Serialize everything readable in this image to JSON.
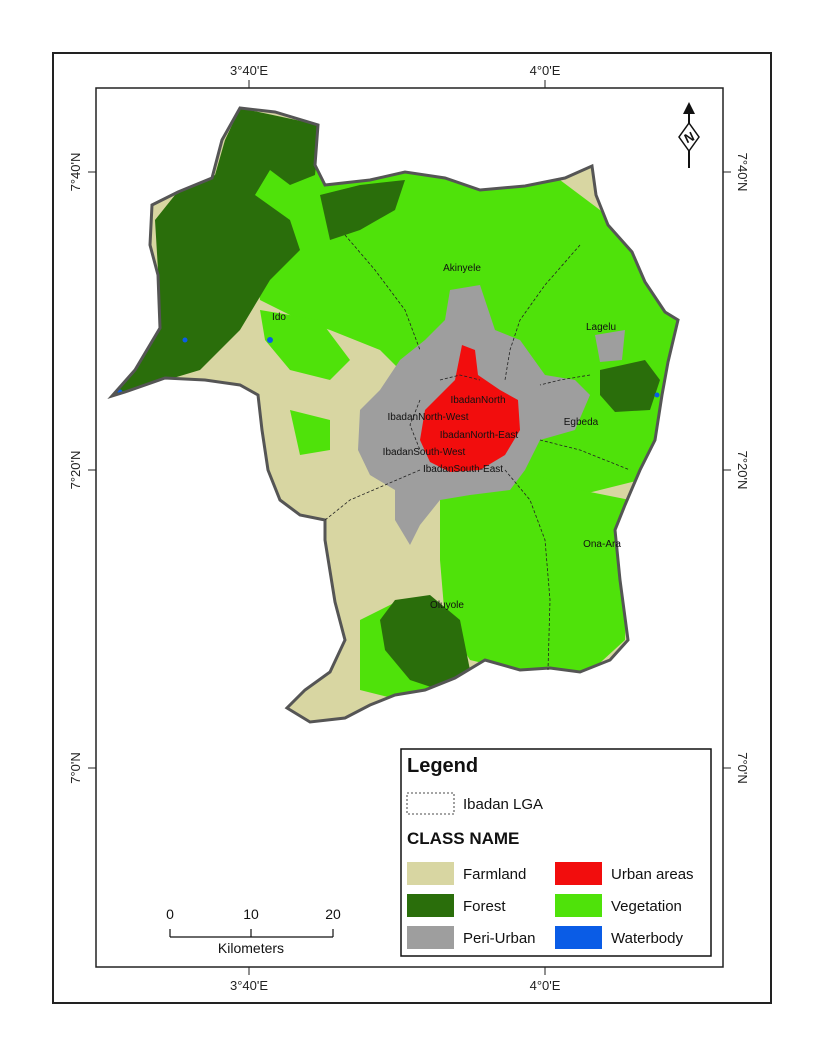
{
  "coordinates": {
    "top": [
      "3°40'E",
      "4°0'E"
    ],
    "bottom": [
      "3°40'E",
      "4°0'E"
    ],
    "left": [
      "7°40'N",
      "7°20'N",
      "7°0'N"
    ],
    "right": [
      "7°40'N",
      "7°20'N",
      "7°0'N"
    ]
  },
  "lga_labels": {
    "akinyele": "Akinyele",
    "ido": "Ido",
    "lagelu": "Lagelu",
    "ibadan_north": "IbadanNorth",
    "ibadan_north_west": "IbadanNorth-West",
    "ibadan_north_east": "IbadanNorth-East",
    "egbeda": "Egbeda",
    "ibadan_south_west": "IbadanSouth-West",
    "ibadan_south_east": "IbadanSouth-East",
    "ona_ara": "Ona-Ara",
    "oluyole": "Oluyole"
  },
  "legend": {
    "title": "Legend",
    "boundary_label": "Ibadan LGA",
    "class_heading": "CLASS NAME",
    "classes": [
      {
        "label": "Farmland",
        "color": "#d8d6a2"
      },
      {
        "label": "Urban areas",
        "color": "#f20d0d"
      },
      {
        "label": "Forest",
        "color": "#2a6e0b"
      },
      {
        "label": "Vegetation",
        "color": "#4fe20a"
      },
      {
        "label": "Peri-Urban",
        "color": "#9e9e9e"
      },
      {
        "label": "Waterbody",
        "color": "#0a5ce6"
      }
    ]
  },
  "scale_bar": {
    "ticks": [
      "0",
      "10",
      "20"
    ],
    "unit": "Kilometers"
  },
  "north_arrow": {
    "letter": "N",
    "icon": "north-arrow-icon"
  }
}
